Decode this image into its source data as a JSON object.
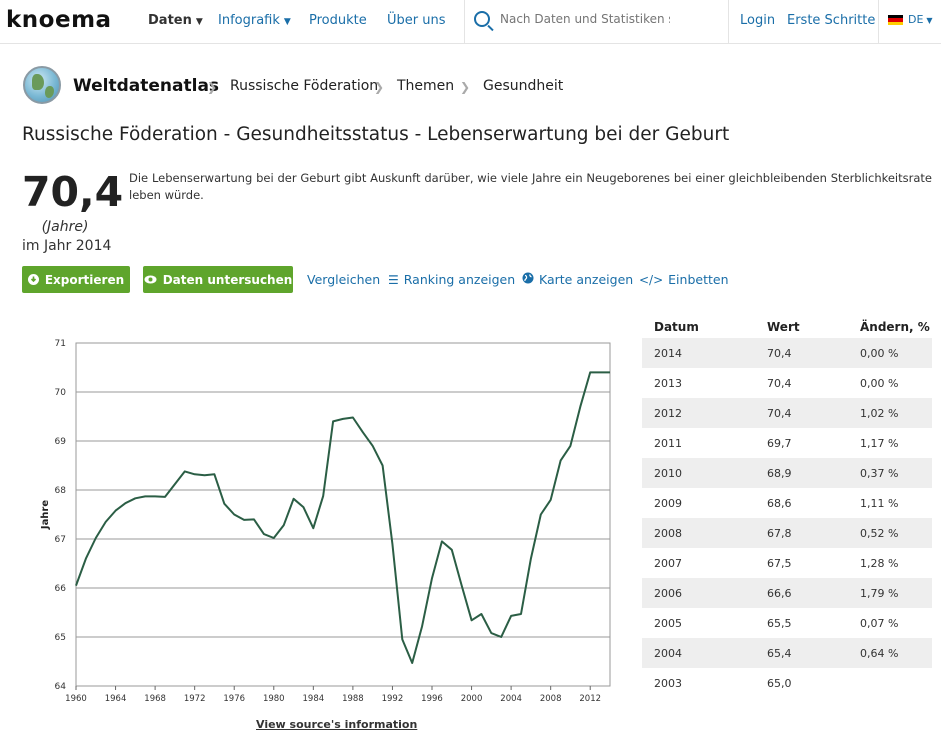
{
  "header": {
    "logo": "knoema",
    "nav": [
      {
        "label": "Daten",
        "active": true,
        "has_menu": true
      },
      {
        "label": "Infografik",
        "active": false,
        "has_menu": true
      },
      {
        "label": "Produkte",
        "active": false,
        "has_menu": false
      },
      {
        "label": "Über uns",
        "active": false,
        "has_menu": false
      }
    ],
    "search_placeholder": "Nach Daten und Statistiken su",
    "login": "Login",
    "first_steps": "Erste Schritte",
    "language": "DE"
  },
  "breadcrumb": {
    "root": "Weltdatenatlas",
    "items": [
      "Russische Föderation",
      "Themen",
      "Gesundheit"
    ]
  },
  "page_title": "Russische Föderation - Gesundheitsstatus - Lebenserwartung bei der Geburt",
  "summary": {
    "value": "70,4",
    "unit": "(Jahre)",
    "year_text": "im Jahr 2014",
    "description": "Die Lebenserwartung bei der Geburt gibt Auskunft darüber, wie viele Jahre ein Neugeborenes bei einer gleichbleibenden Sterblichkeitsrate leben würde."
  },
  "actions": {
    "export": "Exportieren",
    "explore": "Daten untersuchen",
    "compare": "Vergleichen",
    "ranking": "Ranking anzeigen",
    "map": "Karte anzeigen",
    "embed": "Einbetten"
  },
  "colors": {
    "accent_green": "#5fa52c",
    "link_blue": "#1a6ea8",
    "line": "#2b5e45"
  },
  "chart_data": {
    "type": "line",
    "ylabel": "Jahre",
    "ylim": [
      64,
      71
    ],
    "yticks": [
      64,
      65,
      66,
      67,
      68,
      69,
      70,
      71
    ],
    "xlim": [
      1960,
      2014
    ],
    "xticks": [
      1960,
      1964,
      1968,
      1972,
      1976,
      1980,
      1984,
      1988,
      1992,
      1996,
      2000,
      2004,
      2008,
      2012
    ],
    "grid": true,
    "x": [
      1960,
      1961,
      1962,
      1963,
      1964,
      1965,
      1966,
      1967,
      1968,
      1969,
      1970,
      1971,
      1972,
      1973,
      1974,
      1975,
      1976,
      1977,
      1978,
      1979,
      1980,
      1981,
      1982,
      1983,
      1984,
      1985,
      1986,
      1987,
      1988,
      1989,
      1990,
      1991,
      1992,
      1993,
      1994,
      1995,
      1996,
      1997,
      1998,
      1999,
      2000,
      2001,
      2002,
      2003,
      2004,
      2005,
      2006,
      2007,
      2008,
      2009,
      2010,
      2011,
      2012,
      2013,
      2014
    ],
    "y": [
      66.05,
      66.6,
      67.02,
      67.35,
      67.58,
      67.73,
      67.83,
      67.87,
      67.87,
      67.86,
      68.12,
      68.38,
      68.32,
      68.3,
      68.32,
      67.72,
      67.5,
      67.39,
      67.4,
      67.1,
      67.02,
      67.28,
      67.82,
      67.65,
      67.22,
      67.88,
      69.4,
      69.45,
      69.48,
      69.18,
      68.9,
      68.5,
      66.9,
      64.95,
      64.47,
      65.22,
      66.2,
      66.95,
      66.78,
      66.05,
      65.34,
      65.47,
      65.08,
      65.0,
      65.43,
      65.47,
      66.6,
      67.5,
      67.8,
      68.6,
      68.9,
      69.7,
      70.4,
      70.4,
      70.4
    ],
    "source_link": "View source's information"
  },
  "table": {
    "headers": [
      "Datum",
      "Wert",
      "Ändern, %"
    ],
    "rows": [
      [
        "2014",
        "70,4",
        "0,00 %"
      ],
      [
        "2013",
        "70,4",
        "0,00 %"
      ],
      [
        "2012",
        "70,4",
        "1,02 %"
      ],
      [
        "2011",
        "69,7",
        "1,17 %"
      ],
      [
        "2010",
        "68,9",
        "0,37 %"
      ],
      [
        "2009",
        "68,6",
        "1,11 %"
      ],
      [
        "2008",
        "67,8",
        "0,52 %"
      ],
      [
        "2007",
        "67,5",
        "1,28 %"
      ],
      [
        "2006",
        "66,6",
        "1,79 %"
      ],
      [
        "2005",
        "65,5",
        "0,07 %"
      ],
      [
        "2004",
        "65,4",
        "0,64 %"
      ],
      [
        "2003",
        "65,0",
        ""
      ]
    ]
  }
}
